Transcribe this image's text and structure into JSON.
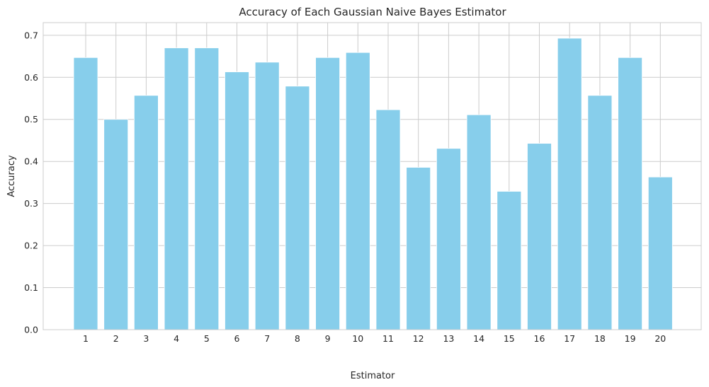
{
  "chart_data": {
    "type": "bar",
    "title": "Accuracy of Each Gaussian Naive Bayes Estimator",
    "xlabel": "Estimator",
    "ylabel": "Accuracy",
    "categories": [
      "1",
      "2",
      "3",
      "4",
      "5",
      "6",
      "7",
      "8",
      "9",
      "10",
      "11",
      "12",
      "13",
      "14",
      "15",
      "16",
      "17",
      "18",
      "19",
      "20"
    ],
    "values": [
      0.647,
      0.5,
      0.557,
      0.67,
      0.67,
      0.613,
      0.636,
      0.579,
      0.647,
      0.659,
      0.523,
      0.386,
      0.431,
      0.511,
      0.329,
      0.443,
      0.693,
      0.557,
      0.647,
      0.363
    ],
    "ylim": [
      0,
      0.73
    ],
    "yticks": [
      0.0,
      0.1,
      0.2,
      0.3,
      0.4,
      0.5,
      0.6,
      0.7
    ],
    "ytick_labels": [
      "0.0",
      "0.1",
      "0.2",
      "0.3",
      "0.4",
      "0.5",
      "0.6",
      "0.7"
    ],
    "grid": true,
    "bar_color": "#87ceeb",
    "grid_color": "#cccccc"
  }
}
